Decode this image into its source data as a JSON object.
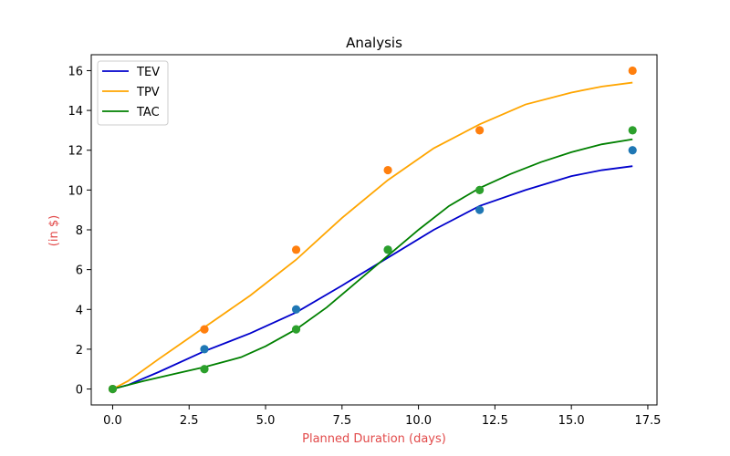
{
  "chart_data": {
    "type": "line",
    "title": "Analysis",
    "xlabel": "Planned Duration (days)",
    "ylabel": "(in $)",
    "label_color": "#e24a4a",
    "xlim": [
      -0.7,
      17.8
    ],
    "ylim": [
      -0.8,
      16.8
    ],
    "x_ticks": [
      0,
      2.5,
      5,
      7.5,
      10,
      12.5,
      15,
      17.5
    ],
    "x_tick_labels": [
      "0.0",
      "2.5",
      "5.0",
      "7.5",
      "10.0",
      "12.5",
      "15.0",
      "17.5"
    ],
    "y_ticks": [
      0,
      2,
      4,
      6,
      8,
      10,
      12,
      14,
      16
    ],
    "y_tick_labels": [
      "0",
      "2",
      "4",
      "6",
      "8",
      "10",
      "12",
      "14",
      "16"
    ],
    "grid": false,
    "legend_position": "top-left",
    "series": [
      {
        "name": "TEV",
        "line_color": "#0000cc",
        "marker_color": "#1f77b4",
        "points_x": [
          0,
          3,
          6,
          9,
          12,
          17
        ],
        "points_y": [
          0,
          2,
          4,
          7,
          9,
          12
        ],
        "curve": [
          [
            0,
            0
          ],
          [
            0.5,
            0.2
          ],
          [
            1.5,
            0.85
          ],
          [
            3,
            1.9
          ],
          [
            4.5,
            2.8
          ],
          [
            6,
            3.85
          ],
          [
            7.5,
            5.2
          ],
          [
            9,
            6.6
          ],
          [
            10.5,
            8
          ],
          [
            12,
            9.2
          ],
          [
            13.5,
            10
          ],
          [
            15,
            10.7
          ],
          [
            16,
            11
          ],
          [
            17,
            11.2
          ]
        ]
      },
      {
        "name": "TPV",
        "line_color": "#ffa500",
        "marker_color": "#ff7f0e",
        "points_x": [
          0,
          3,
          6,
          9,
          12,
          17
        ],
        "points_y": [
          0,
          3,
          7,
          11,
          13,
          16
        ],
        "curve": [
          [
            0,
            0
          ],
          [
            0.5,
            0.4
          ],
          [
            1.5,
            1.5
          ],
          [
            3,
            3.1
          ],
          [
            4.5,
            4.7
          ],
          [
            6,
            6.5
          ],
          [
            7.5,
            8.6
          ],
          [
            9,
            10.5
          ],
          [
            10.5,
            12.1
          ],
          [
            12,
            13.3
          ],
          [
            13.5,
            14.3
          ],
          [
            15,
            14.9
          ],
          [
            16,
            15.2
          ],
          [
            17,
            15.4
          ]
        ]
      },
      {
        "name": "TAC",
        "line_color": "#008000",
        "marker_color": "#2ca02c",
        "points_x": [
          0,
          3,
          6,
          9,
          12,
          17
        ],
        "points_y": [
          0,
          1,
          3,
          7,
          10,
          13
        ],
        "curve": [
          [
            0,
            0
          ],
          [
            1,
            0.4
          ],
          [
            2,
            0.75
          ],
          [
            3,
            1.1
          ],
          [
            4.2,
            1.6
          ],
          [
            5,
            2.15
          ],
          [
            6,
            3
          ],
          [
            7,
            4.1
          ],
          [
            8,
            5.4
          ],
          [
            9,
            6.7
          ],
          [
            10,
            8
          ],
          [
            11,
            9.2
          ],
          [
            12,
            10.1
          ],
          [
            13,
            10.8
          ],
          [
            14,
            11.4
          ],
          [
            15,
            11.9
          ],
          [
            16,
            12.3
          ],
          [
            17,
            12.55
          ]
        ]
      }
    ]
  }
}
